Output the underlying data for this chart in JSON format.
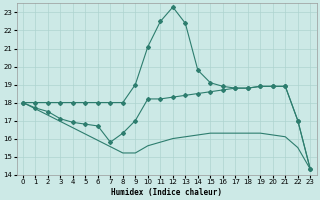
{
  "xlabel": "Humidex (Indice chaleur)",
  "x": [
    0,
    1,
    2,
    3,
    4,
    5,
    6,
    7,
    8,
    9,
    10,
    11,
    12,
    13,
    14,
    15,
    16,
    17,
    18,
    19,
    20,
    21,
    22,
    23
  ],
  "curve_spike": [
    18.0,
    18.0,
    18.0,
    18.0,
    18.0,
    18.0,
    18.0,
    18.0,
    18.0,
    19.0,
    21.1,
    22.5,
    23.3,
    22.4,
    19.8,
    19.1,
    18.9,
    18.8,
    18.8,
    18.9,
    18.9,
    18.9,
    17.0,
    14.3
  ],
  "curve_mid": [
    18.0,
    17.7,
    17.5,
    17.1,
    16.9,
    16.8,
    16.7,
    15.8,
    16.3,
    17.0,
    18.2,
    18.2,
    18.3,
    18.4,
    18.5,
    18.6,
    18.7,
    18.8,
    18.8,
    18.9,
    18.9,
    18.9,
    17.0,
    14.3
  ],
  "curve_straight": [
    18.0,
    17.65,
    17.3,
    16.95,
    16.6,
    16.25,
    15.9,
    15.55,
    15.2,
    15.2,
    15.6,
    15.8,
    16.0,
    16.1,
    16.2,
    16.3,
    16.3,
    16.3,
    16.3,
    16.3,
    16.2,
    16.1,
    15.5,
    14.3
  ],
  "line_color": "#2d7d6e",
  "bg_color": "#cce9e6",
  "grid_color": "#aed4d0",
  "ylim": [
    14,
    23.5
  ],
  "xlim": [
    -0.5,
    23.5
  ],
  "yticks": [
    14,
    15,
    16,
    17,
    18,
    19,
    20,
    21,
    22,
    23
  ],
  "xticks": [
    0,
    1,
    2,
    3,
    4,
    5,
    6,
    7,
    8,
    9,
    10,
    11,
    12,
    13,
    14,
    15,
    16,
    17,
    18,
    19,
    20,
    21,
    22,
    23
  ]
}
